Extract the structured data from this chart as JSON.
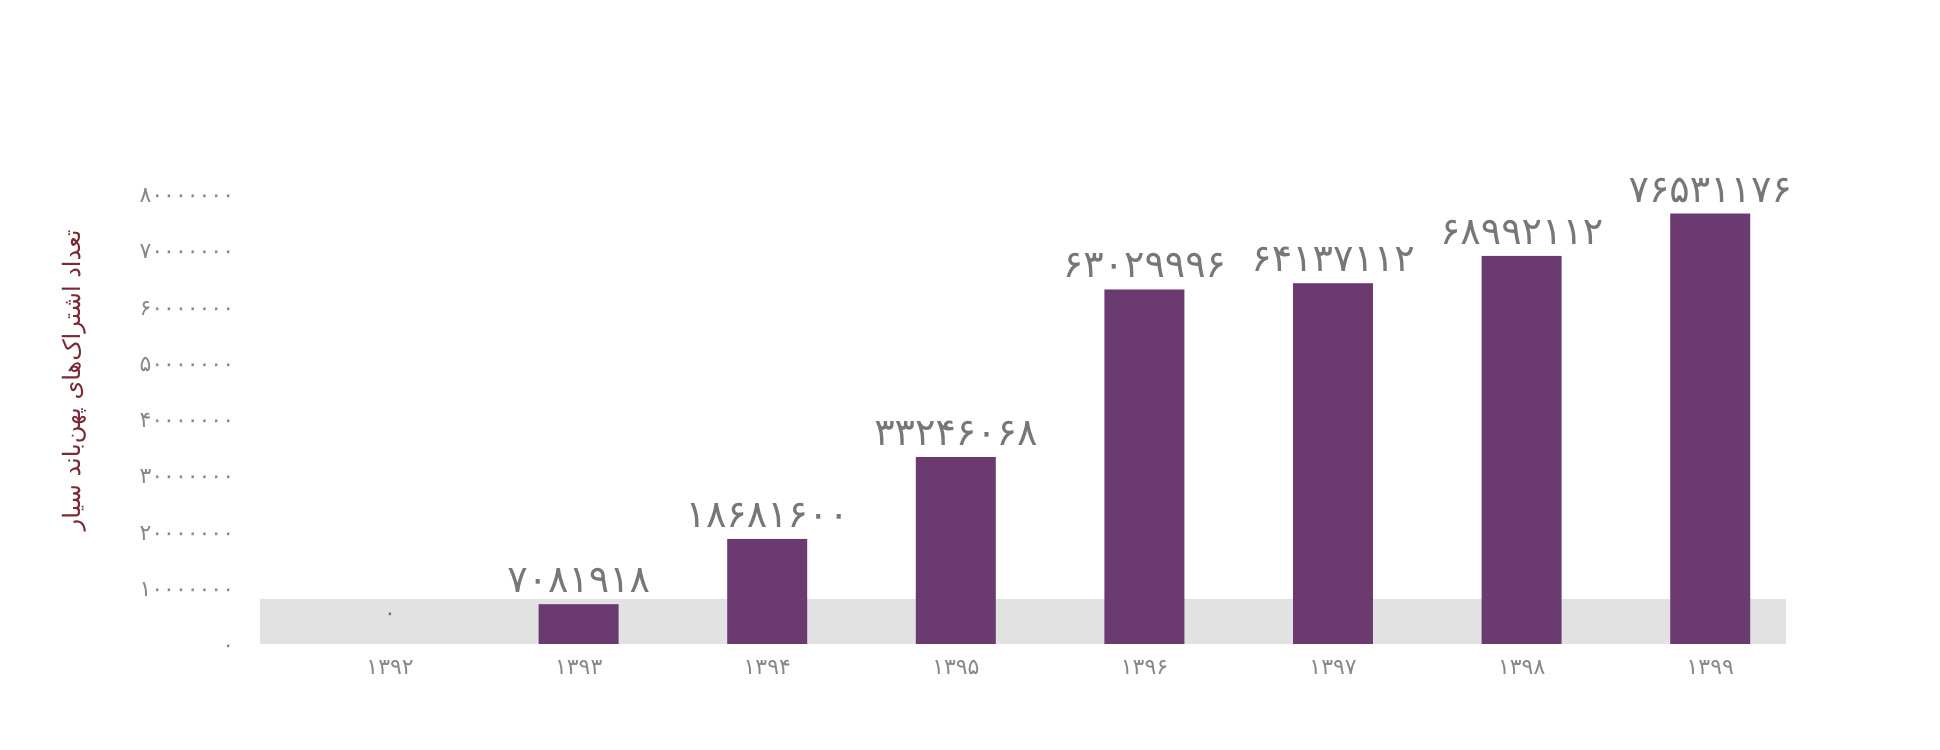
{
  "chart_data": {
    "type": "bar",
    "ylabel": "تعداد اشتراک‌های پهن‌باند سیار",
    "categories": [
      "۱۳۹۲",
      "۱۳۹۳",
      "۱۳۹۴",
      "۱۳۹۵",
      "۱۳۹۶",
      "۱۳۹۷",
      "۱۳۹۸",
      "۱۳۹۹"
    ],
    "values": [
      0,
      7081918,
      18681600,
      33246068,
      63029996,
      64137112,
      68992112,
      76531176
    ],
    "value_labels": [
      "۰",
      "۷۰۸۱۹۱۸",
      "۱۸۶۸۱۶۰۰",
      "۳۳۲۴۶۰۶۸",
      "۶۳۰۲۹۹۹۶",
      "۶۴۱۳۷۱۱۲",
      "۶۸۹۹۲۱۱۲",
      "۷۶۵۳۱۱۷۶"
    ],
    "color": "#6a3a70",
    "ylim": [
      0,
      80000000
    ],
    "yticks": [
      {
        "value": 0,
        "label": "۰"
      },
      {
        "value": 10000000,
        "label": "۱۰۰۰۰۰۰۰"
      },
      {
        "value": 20000000,
        "label": "۲۰۰۰۰۰۰۰"
      },
      {
        "value": 30000000,
        "label": "۳۰۰۰۰۰۰۰"
      },
      {
        "value": 40000000,
        "label": "۴۰۰۰۰۰۰۰"
      },
      {
        "value": 50000000,
        "label": "۵۰۰۰۰۰۰۰"
      },
      {
        "value": 60000000,
        "label": "۶۰۰۰۰۰۰۰"
      },
      {
        "value": 70000000,
        "label": "۷۰۰۰۰۰۰۰"
      },
      {
        "value": 80000000,
        "label": "۸۰۰۰۰۰۰۰"
      }
    ],
    "bands": [
      {
        "axis": "y",
        "from": 0,
        "to": 8000000,
        "color": "#e2e2e2"
      }
    ]
  }
}
